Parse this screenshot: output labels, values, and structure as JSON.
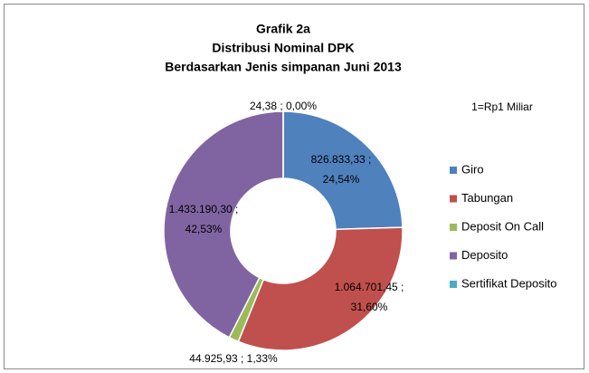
{
  "chart_data": {
    "type": "donut",
    "title": [
      "Grafik 2a",
      "Distribusi  Nominal DPK",
      "Berdasarkan Jenis simpanan Juni 2013"
    ],
    "annotation": "1=Rp1 Miliar",
    "categories": [
      "Giro",
      "Tabungan",
      "Deposit On Call",
      "Deposito",
      "Sertifikat Deposito"
    ],
    "values": [
      826833.33,
      1064701.45,
      44925.93,
      1433190.3,
      24.38
    ],
    "value_labels": [
      "826.833,33 ; 24,54%",
      "1.064.701,45 ; 31,60%",
      "44.925,93 ; 1,33%",
      "1.433.190,30 ; 42,53%",
      "24,38 ; 0,00%"
    ],
    "colors": [
      "#4f81bd",
      "#c0504d",
      "#9bbb59",
      "#8064a2",
      "#4bacc6"
    ],
    "legend": "right"
  }
}
